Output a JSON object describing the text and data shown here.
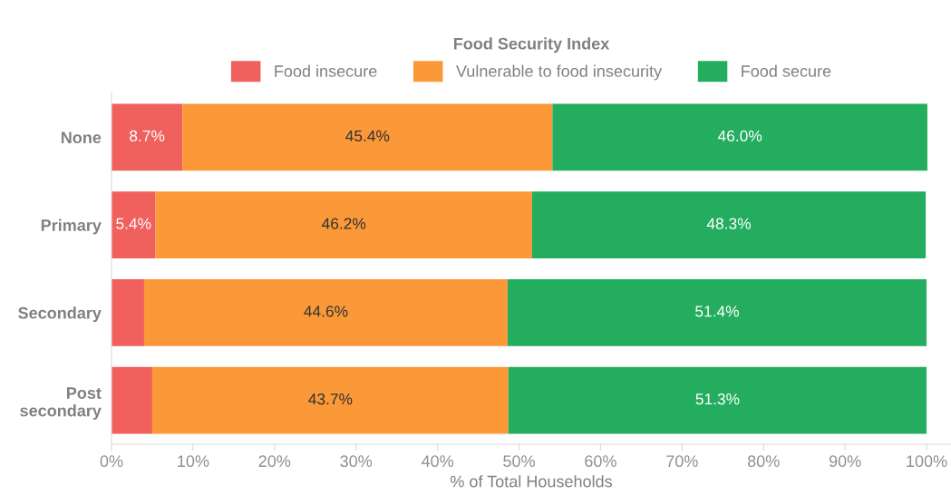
{
  "chart_data": {
    "type": "bar",
    "orientation": "horizontal",
    "stacked": true,
    "legend_title": "Food Security Index",
    "legend": "top",
    "xlabel": "% of Total Households",
    "categories": [
      "None",
      "Primary",
      "Secondary",
      "Post\nsecondary"
    ],
    "series": [
      {
        "name": "Food insecure",
        "color": "#f0605d",
        "values": [
          8.7,
          5.4,
          4.0,
          5.0
        ],
        "value_labels": [
          "8.7%",
          "5.4%",
          null,
          null
        ]
      },
      {
        "name": "Vulnerable to food insecurity",
        "color": "#fb9838",
        "values": [
          45.4,
          46.2,
          44.6,
          43.7
        ],
        "value_labels": [
          "45.4%",
          "46.2%",
          "44.6%",
          "43.7%"
        ]
      },
      {
        "name": "Food secure",
        "color": "#24ad5f",
        "values": [
          46.0,
          48.3,
          51.4,
          51.3
        ],
        "value_labels": [
          "46.0%",
          "48.3%",
          "51.4%",
          "51.3%"
        ]
      }
    ],
    "xlim": [
      0,
      103
    ],
    "xticks": [
      {
        "value": 0,
        "label": "0%"
      },
      {
        "value": 10,
        "label": "10%"
      },
      {
        "value": 20,
        "label": "20%"
      },
      {
        "value": 30,
        "label": "30%"
      },
      {
        "value": 40,
        "label": "40%"
      },
      {
        "value": 50,
        "label": "50%"
      },
      {
        "value": 60,
        "label": "60%"
      },
      {
        "value": 70,
        "label": "70%"
      },
      {
        "value": 80,
        "label": "80%"
      },
      {
        "value": 90,
        "label": "90%"
      },
      {
        "value": 100,
        "label": "100%"
      }
    ],
    "grid": false
  }
}
